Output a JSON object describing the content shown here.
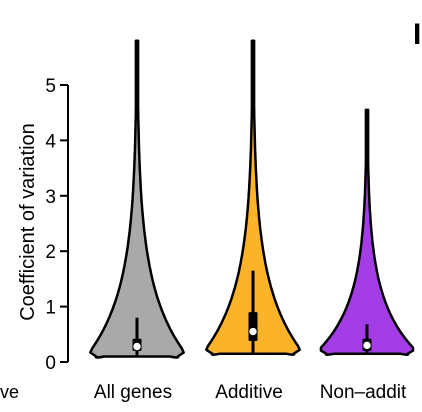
{
  "chart_data": {
    "type": "violin",
    "title": "",
    "ylabel": "Coefficient of variation",
    "xlabel": "",
    "ylim": [
      0,
      5
    ],
    "y_ticks": [
      0,
      1,
      2,
      3,
      4,
      5
    ],
    "left_cut_label": "ve",
    "panel_letter_fragment": "I",
    "categories": [
      "All genes",
      "Additive",
      "Non–addit"
    ],
    "series": [
      {
        "color": "#a9a9a9",
        "max": 5.8,
        "bottom": 0.1,
        "median": 0.28,
        "q1": 0.2,
        "q3": 0.42,
        "whisker_high": 0.8,
        "whisker_low": 0.12,
        "body_width": 0.5
      },
      {
        "color": "#fbb32a",
        "max": 5.8,
        "bottom": 0.15,
        "median": 0.55,
        "q1": 0.38,
        "q3": 0.9,
        "whisker_high": 1.65,
        "whisker_low": 0.15,
        "body_width": 0.5
      },
      {
        "color": "#a53de6",
        "max": 4.55,
        "bottom": 0.15,
        "median": 0.3,
        "q1": 0.2,
        "q3": 0.42,
        "whisker_high": 0.68,
        "whisker_low": 0.15,
        "body_width": 0.5
      }
    ],
    "grid": false
  }
}
